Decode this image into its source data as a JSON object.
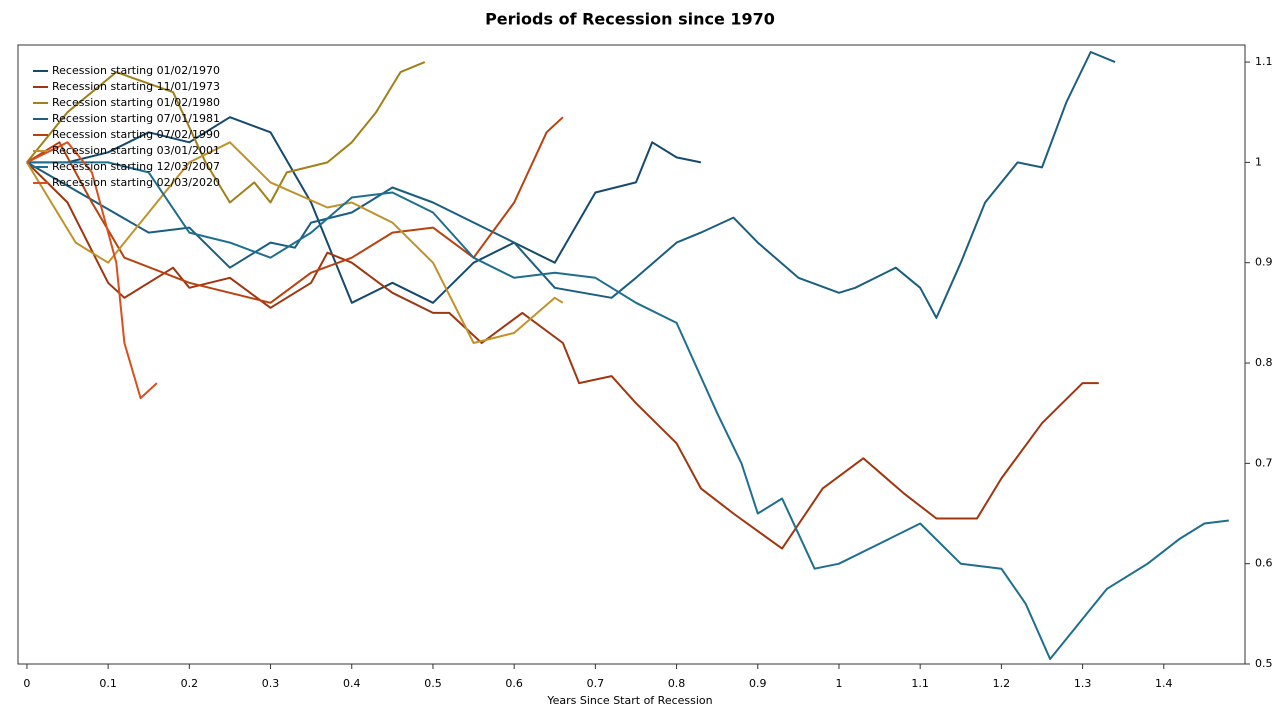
{
  "chart_data": {
    "type": "line",
    "title": "Periods of Recession since 1970",
    "xlabel": "Years Since Start of Recession",
    "xlim": [
      -0.011,
      1.5
    ],
    "ylim": [
      0.5,
      1.117
    ],
    "xticks": [
      0,
      0.1,
      0.2,
      0.3,
      0.4,
      0.5,
      0.6,
      0.7,
      0.8,
      0.9,
      1,
      1.1,
      1.2,
      1.3,
      1.4
    ],
    "yticks": [
      0.5,
      0.6,
      0.7,
      0.8,
      0.9,
      1,
      1.1
    ],
    "legend": "upper-left",
    "series": [
      {
        "name": "Recession starting 01/02/1970",
        "color": "#154a6e",
        "x": [
          0,
          0.05,
          0.1,
          0.15,
          0.2,
          0.25,
          0.3,
          0.35,
          0.4,
          0.45,
          0.5,
          0.55,
          0.6,
          0.65,
          0.7,
          0.75,
          0.77,
          0.8,
          0.83
        ],
        "values": [
          1,
          1.0,
          1.01,
          1.03,
          1.02,
          1.045,
          1.03,
          0.96,
          0.86,
          0.88,
          0.86,
          0.9,
          0.92,
          0.9,
          0.97,
          0.98,
          1.02,
          1.005,
          1.0
        ]
      },
      {
        "name": "Recession starting 11/01/1973",
        "color": "#a0360f",
        "x": [
          0,
          0.05,
          0.1,
          0.12,
          0.18,
          0.2,
          0.25,
          0.3,
          0.35,
          0.37,
          0.4,
          0.45,
          0.5,
          0.52,
          0.56,
          0.61,
          0.66,
          0.68,
          0.72,
          0.75,
          0.8,
          0.83,
          0.87,
          0.93,
          0.98,
          1.03,
          1.08,
          1.12,
          1.17,
          1.2,
          1.25,
          1.3,
          1.32
        ],
        "values": [
          1,
          0.96,
          0.88,
          0.865,
          0.895,
          0.875,
          0.885,
          0.855,
          0.88,
          0.91,
          0.9,
          0.87,
          0.85,
          0.85,
          0.82,
          0.85,
          0.82,
          0.78,
          0.787,
          0.76,
          0.72,
          0.675,
          0.65,
          0.615,
          0.675,
          0.705,
          0.67,
          0.645,
          0.645,
          0.685,
          0.74,
          0.78,
          0.78
        ]
      },
      {
        "name": "Recession starting 01/02/1980",
        "color": "#a08019",
        "x": [
          0,
          0.05,
          0.11,
          0.18,
          0.22,
          0.25,
          0.28,
          0.3,
          0.32,
          0.37,
          0.4,
          0.43,
          0.46,
          0.49
        ],
        "values": [
          1,
          1.05,
          1.09,
          1.07,
          1.0,
          0.96,
          0.98,
          0.96,
          0.99,
          1.0,
          1.02,
          1.05,
          1.09,
          1.1
        ]
      },
      {
        "name": "Recession starting 07/01/1981",
        "color": "#1b5f80",
        "x": [
          0,
          0.15,
          0.2,
          0.25,
          0.3,
          0.33,
          0.35,
          0.4,
          0.45,
          0.5,
          0.6,
          0.65,
          0.72,
          0.75,
          0.8,
          0.83,
          0.87,
          0.9,
          0.95,
          1.0,
          1.02,
          1.07,
          1.1,
          1.12,
          1.15,
          1.18,
          1.22,
          1.25,
          1.28,
          1.31,
          1.34
        ],
        "values": [
          1,
          0.93,
          0.935,
          0.895,
          0.92,
          0.915,
          0.94,
          0.95,
          0.975,
          0.96,
          0.92,
          0.875,
          0.865,
          0.885,
          0.92,
          0.93,
          0.945,
          0.92,
          0.885,
          0.87,
          0.875,
          0.895,
          0.875,
          0.845,
          0.9,
          0.96,
          1.0,
          0.995,
          1.06,
          1.11,
          1.1
        ]
      },
      {
        "name": "Recession starting 07/02/1990",
        "color": "#b8420f",
        "x": [
          0,
          0.04,
          0.08,
          0.12,
          0.2,
          0.25,
          0.3,
          0.35,
          0.4,
          0.45,
          0.5,
          0.55,
          0.6,
          0.64,
          0.66
        ],
        "values": [
          1,
          1.02,
          0.96,
          0.905,
          0.88,
          0.87,
          0.86,
          0.89,
          0.905,
          0.93,
          0.935,
          0.905,
          0.96,
          1.03,
          1.045
        ]
      },
      {
        "name": "Recession starting 03/01/2001",
        "color": "#c2922a",
        "x": [
          0,
          0.06,
          0.1,
          0.15,
          0.2,
          0.25,
          0.3,
          0.37,
          0.4,
          0.45,
          0.5,
          0.55,
          0.6,
          0.65,
          0.66
        ],
        "values": [
          1,
          0.92,
          0.9,
          0.95,
          1.0,
          1.02,
          0.98,
          0.955,
          0.96,
          0.94,
          0.9,
          0.82,
          0.83,
          0.865,
          0.86
        ]
      },
      {
        "name": "Recession starting 12/03/2007",
        "color": "#1e6f8f",
        "x": [
          0,
          0.1,
          0.15,
          0.2,
          0.25,
          0.3,
          0.35,
          0.4,
          0.45,
          0.5,
          0.55,
          0.6,
          0.65,
          0.7,
          0.75,
          0.8,
          0.85,
          0.88,
          0.9,
          0.93,
          0.97,
          1.0,
          1.05,
          1.1,
          1.15,
          1.2,
          1.23,
          1.26,
          1.3,
          1.33,
          1.38,
          1.42,
          1.45,
          1.48
        ],
        "values": [
          1,
          1.0,
          0.99,
          0.93,
          0.92,
          0.905,
          0.93,
          0.965,
          0.97,
          0.95,
          0.905,
          0.885,
          0.89,
          0.885,
          0.86,
          0.84,
          0.75,
          0.7,
          0.65,
          0.665,
          0.595,
          0.6,
          0.62,
          0.64,
          0.6,
          0.595,
          0.56,
          0.505,
          0.545,
          0.575,
          0.6,
          0.625,
          0.64,
          0.643
        ]
      },
      {
        "name": "Recession starting 02/03/2020",
        "color": "#d94f1e",
        "x": [
          0,
          0.05,
          0.08,
          0.11,
          0.12,
          0.14,
          0.16
        ],
        "values": [
          1,
          1.02,
          0.99,
          0.9,
          0.82,
          0.765,
          0.78
        ]
      }
    ]
  }
}
